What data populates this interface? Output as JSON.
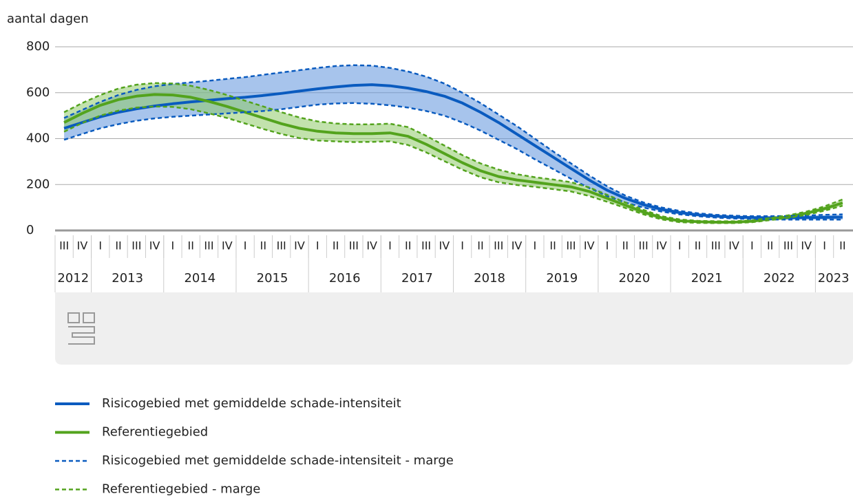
{
  "chart_data": {
    "type": "band_line",
    "y_label": "aantal dagen",
    "categories": [
      "III",
      "IV",
      "I",
      "II",
      "III",
      "IV",
      "I",
      "II",
      "III",
      "IV",
      "I",
      "II",
      "III",
      "IV",
      "I",
      "II",
      "III",
      "IV",
      "I",
      "II",
      "III",
      "IV",
      "I",
      "II",
      "III",
      "IV",
      "I",
      "II",
      "III",
      "IV",
      "I",
      "II",
      "III",
      "IV",
      "I",
      "II",
      "III",
      "IV",
      "I",
      "II",
      "III",
      "IV",
      "I",
      "II"
    ],
    "years": [
      "2012",
      "2013",
      "2014",
      "2015",
      "2016",
      "2017",
      "2018",
      "2019",
      "2020",
      "2021",
      "2022",
      "2023"
    ],
    "ylim": [
      0,
      800
    ],
    "yticks": [
      0,
      200,
      400,
      600,
      800
    ],
    "grid": true,
    "series": [
      {
        "name": "Risicogebied met gemiddelde schade-intensiteit",
        "color": "#0a5bbf",
        "values": [
          445,
          470,
          495,
          515,
          530,
          542,
          552,
          560,
          567,
          574,
          580,
          588,
          597,
          607,
          617,
          625,
          632,
          635,
          630,
          620,
          605,
          585,
          555,
          515,
          470,
          420,
          370,
          320,
          270,
          220,
          175,
          140,
          112,
          92,
          78,
          68,
          62,
          58,
          56,
          55,
          55,
          56,
          57,
          58
        ]
      },
      {
        "name": "Referentiegebied",
        "color": "#53a31d",
        "values": [
          470,
          510,
          545,
          570,
          585,
          592,
          590,
          580,
          562,
          540,
          515,
          490,
          465,
          445,
          432,
          425,
          422,
          422,
          425,
          410,
          375,
          335,
          295,
          260,
          235,
          220,
          210,
          200,
          190,
          170,
          140,
          110,
          80,
          55,
          42,
          38,
          36,
          36,
          40,
          50,
          60,
          75,
          95,
          120
        ]
      },
      {
        "name": "Risicogebied met gemiddelde schade-intensiteit - marge",
        "color": "#0a5bbf",
        "dashed": true,
        "band_color": "#5f93dc",
        "upper": [
          490,
          525,
          560,
          590,
          612,
          628,
          638,
          645,
          652,
          660,
          668,
          678,
          688,
          698,
          708,
          716,
          720,
          718,
          708,
          692,
          670,
          640,
          600,
          555,
          505,
          455,
          400,
          345,
          292,
          240,
          192,
          152,
          122,
          100,
          85,
          75,
          68,
          64,
          62,
          62,
          63,
          65,
          68,
          70
        ],
        "lower": [
          395,
          420,
          445,
          463,
          478,
          488,
          495,
          500,
          505,
          510,
          515,
          520,
          528,
          538,
          548,
          553,
          555,
          552,
          545,
          535,
          520,
          500,
          470,
          435,
          395,
          355,
          310,
          268,
          225,
          185,
          150,
          122,
          100,
          82,
          70,
          62,
          56,
          52,
          50,
          48,
          47,
          47,
          47,
          47
        ]
      },
      {
        "name": "Referentiegebied - marge",
        "color": "#53a31d",
        "dashed": true,
        "band_color": "#8fcb6a",
        "upper": [
          515,
          555,
          590,
          618,
          635,
          642,
          640,
          630,
          612,
          590,
          565,
          540,
          515,
          492,
          475,
          466,
          462,
          462,
          465,
          450,
          412,
          370,
          328,
          292,
          265,
          245,
          232,
          222,
          210,
          188,
          155,
          122,
          90,
          62,
          48,
          42,
          40,
          40,
          44,
          54,
          66,
          82,
          105,
          135
        ],
        "lower": [
          430,
          468,
          500,
          522,
          535,
          540,
          538,
          528,
          510,
          490,
          466,
          442,
          420,
          402,
          392,
          388,
          385,
          386,
          388,
          372,
          340,
          302,
          265,
          232,
          210,
          198,
          190,
          180,
          170,
          150,
          125,
          98,
          70,
          48,
          36,
          33,
          32,
          32,
          36,
          45,
          55,
          68,
          86,
          108
        ]
      }
    ]
  }
}
